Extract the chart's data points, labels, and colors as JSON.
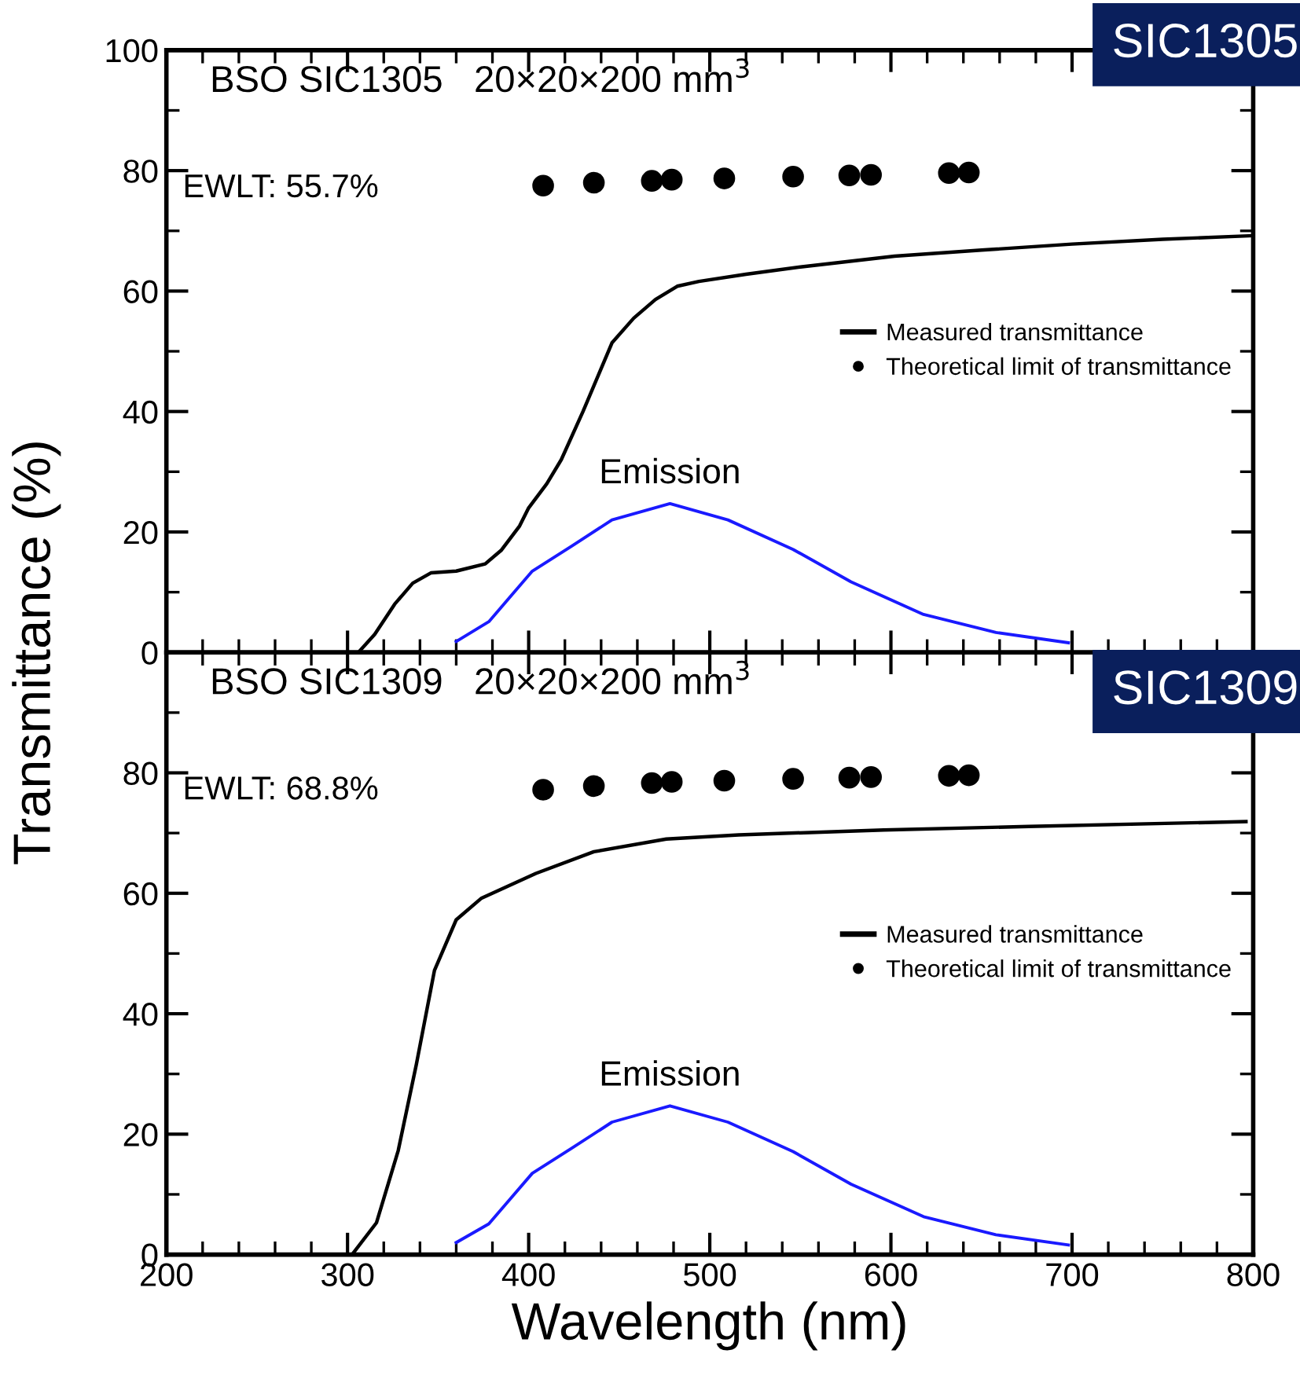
{
  "chart_data": [
    {
      "type": "line",
      "ylabel": "Transmittance (%)",
      "xlim": [
        200,
        800
      ],
      "ylim": [
        0,
        100
      ],
      "xticks": [
        200,
        300,
        400,
        500,
        600,
        700,
        800
      ],
      "yticks": [
        0,
        20,
        40,
        60,
        80,
        100
      ],
      "tick_labels": "y",
      "legend": "right",
      "annotations": [
        "BSO SIC1305   20×20×200 mm$^{3}$",
        "EWLT: 55.7%",
        "SIC1305"
      ],
      "series": [
        {
          "name": "Measured transmittance",
          "color": "#000000",
          "x": [
            306,
            315,
            326,
            336,
            346,
            360,
            376,
            385,
            395,
            400,
            410,
            418,
            430,
            446,
            458,
            470,
            482,
            494,
            520,
            550,
            602,
            650,
            700,
            750,
            800
          ],
          "values": [
            0,
            3,
            8,
            11.5,
            13.2,
            13.5,
            14.7,
            17,
            21,
            24,
            28,
            32,
            40,
            51.4,
            55.5,
            58.6,
            60.8,
            61.6,
            62.8,
            64,
            65.8,
            66.8,
            67.8,
            68.6,
            69.2
          ]
        },
        {
          "name": "Theoretical limit of transmittance",
          "type": "scatter",
          "marker": "circle",
          "color": "#000000",
          "x": [
            408,
            436,
            468,
            479,
            508,
            546,
            577,
            589,
            632,
            643
          ],
          "values": [
            77.5,
            78,
            78.3,
            78.5,
            78.7,
            79,
            79.2,
            79.3,
            79.6,
            79.7
          ]
        },
        {
          "name": "Emission",
          "color": "#1a1aff",
          "x": [
            360,
            378,
            402,
            424,
            446,
            478,
            510,
            546,
            578,
            618,
            658,
            698
          ],
          "values": [
            1.8,
            5.1,
            13.5,
            17.7,
            22,
            24.7,
            22,
            17.1,
            11.7,
            6.3,
            3.3,
            1.6
          ]
        }
      ]
    },
    {
      "type": "line",
      "xlabel": "Wavelength (nm)",
      "xlim": [
        200,
        800
      ],
      "ylim": [
        0,
        100
      ],
      "xticks": [
        200,
        300,
        400,
        500,
        600,
        700,
        800
      ],
      "yticks": [
        0,
        20,
        40,
        60,
        80,
        {
          "value": 100,
          "label": null
        }
      ],
      "legend": "right",
      "annotations": [
        "BSO SIC1309   20×20×200 mm$^{3}$",
        "EWLT: 68.8%",
        "SIC1309"
      ],
      "series": [
        {
          "name": "Measured transmittance",
          "color": "#000000",
          "x": [
            302.5,
            316,
            328,
            338,
            348,
            360,
            374,
            404,
            436,
            476,
            516,
            596,
            676,
            796
          ],
          "values": [
            0,
            5.3,
            17.3,
            31.6,
            47.2,
            55.6,
            59.2,
            63.3,
            66.9,
            69,
            69.7,
            70.5,
            71.1,
            71.9
          ]
        },
        {
          "name": "Theoretical limit of transmittance",
          "type": "scatter",
          "marker": "circle",
          "color": "#000000",
          "x": [
            408,
            436,
            468,
            479,
            508,
            546,
            577,
            589,
            632,
            643
          ],
          "values": [
            77.2,
            77.8,
            78.3,
            78.5,
            78.7,
            79,
            79.2,
            79.3,
            79.5,
            79.6
          ]
        },
        {
          "name": "Emission",
          "color": "#1a1aff",
          "x": [
            360,
            378,
            402,
            424,
            446,
            478,
            510,
            546,
            578,
            618,
            658,
            698
          ],
          "values": [
            2,
            5.1,
            13.5,
            17.7,
            22,
            24.7,
            22,
            17.1,
            11.7,
            6.3,
            3.3,
            1.6
          ]
        }
      ]
    }
  ]
}
